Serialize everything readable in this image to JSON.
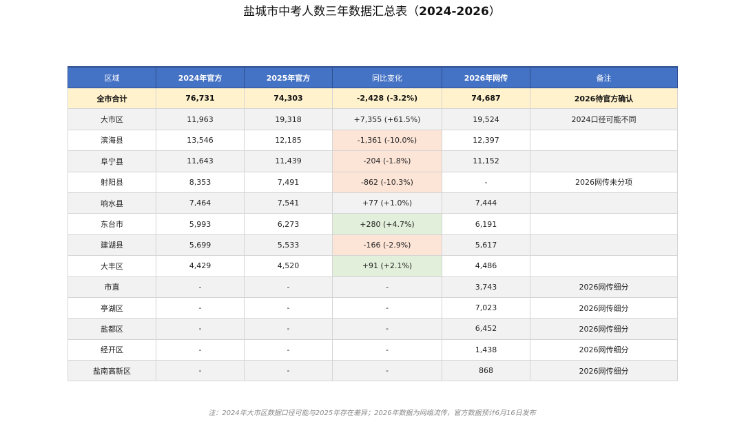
{
  "title": {
    "main": "盐城市中考人数三年数据汇总表（",
    "years": "2024-2026",
    "close": "）"
  },
  "table": {
    "headers": [
      "区域",
      "2024年官方",
      "2025年官方",
      "同比变化",
      "2026年网传",
      "备注"
    ],
    "rows": [
      {
        "region": "全市合计",
        "y2024": "76,731",
        "y2025": "74,303",
        "change": "-2,428 (-3.2%)",
        "y2026": "74,687",
        "note": "2026待官方确认",
        "trend": "total"
      },
      {
        "region": "大市区",
        "y2024": "11,963",
        "y2025": "19,318",
        "change": "+7,355 (+61.5%)",
        "y2026": "19,524",
        "note": "2024口径可能不同",
        "trend": "none"
      },
      {
        "region": "滨海县",
        "y2024": "13,546",
        "y2025": "12,185",
        "change": "-1,361 (-10.0%)",
        "y2026": "12,397",
        "note": "",
        "trend": "neg"
      },
      {
        "region": "阜宁县",
        "y2024": "11,643",
        "y2025": "11,439",
        "change": "-204 (-1.8%)",
        "y2026": "11,152",
        "note": "",
        "trend": "neg"
      },
      {
        "region": "射阳县",
        "y2024": "8,353",
        "y2025": "7,491",
        "change": "-862 (-10.3%)",
        "y2026": "-",
        "note": "2026网传未分项",
        "trend": "neg"
      },
      {
        "region": "响水县",
        "y2024": "7,464",
        "y2025": "7,541",
        "change": "+77 (+1.0%)",
        "y2026": "7,444",
        "note": "",
        "trend": "none"
      },
      {
        "region": "东台市",
        "y2024": "5,993",
        "y2025": "6,273",
        "change": "+280 (+4.7%)",
        "y2026": "6,191",
        "note": "",
        "trend": "pos"
      },
      {
        "region": "建湖县",
        "y2024": "5,699",
        "y2025": "5,533",
        "change": "-166 (-2.9%)",
        "y2026": "5,617",
        "note": "",
        "trend": "neg"
      },
      {
        "region": "大丰区",
        "y2024": "4,429",
        "y2025": "4,520",
        "change": "+91 (+2.1%)",
        "y2026": "4,486",
        "note": "",
        "trend": "pos"
      },
      {
        "region": "市直",
        "y2024": "-",
        "y2025": "-",
        "change": "-",
        "y2026": "3,743",
        "note": "2026网传细分",
        "trend": "none"
      },
      {
        "region": "亭湖区",
        "y2024": "-",
        "y2025": "-",
        "change": "-",
        "y2026": "7,023",
        "note": "2026网传细分",
        "trend": "none"
      },
      {
        "region": "盐都区",
        "y2024": "-",
        "y2025": "-",
        "change": "-",
        "y2026": "6,452",
        "note": "2026网传细分",
        "trend": "none"
      },
      {
        "region": "经开区",
        "y2024": "-",
        "y2025": "-",
        "change": "-",
        "y2026": "1,438",
        "note": "2026网传细分",
        "trend": "none"
      },
      {
        "region": "盐南高新区",
        "y2024": "-",
        "y2025": "-",
        "change": "-",
        "y2026": "868",
        "note": "2026网传细分",
        "trend": "none"
      }
    ]
  },
  "footer": "注：2024年大市区数据口径可能与2025年存在差异；2026年数据为网络流传，官方数据预计6月16日发布",
  "colors": {
    "header_bg": "#4472c4",
    "total_bg": "#fff2cc",
    "decrease_bg": "#fce4d6",
    "increase_bg": "#e2efda",
    "stripe_bg": "#f2f2f2"
  }
}
